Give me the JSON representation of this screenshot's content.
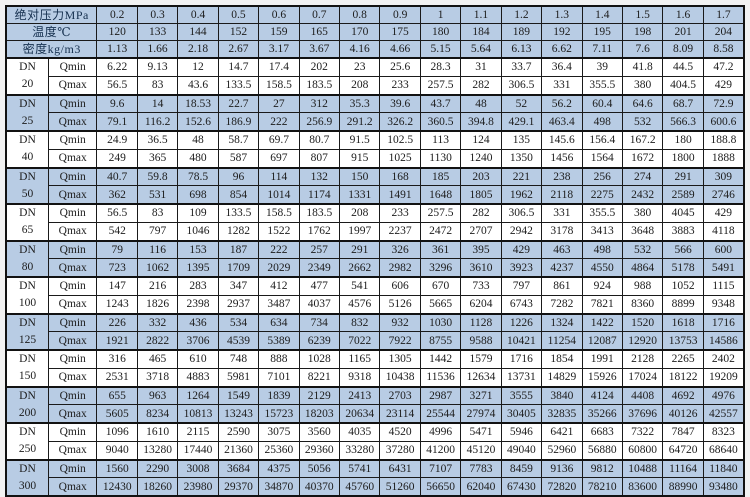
{
  "colors": {
    "shaded_row_bg": "#b8cce4",
    "plain_row_bg": "#ffffff",
    "border": "#121212",
    "text": "#1c1c1c",
    "cjk_text": "#152f4e"
  },
  "table": {
    "dn_prefix": "DN",
    "qmin_label": "Qmin",
    "qmax_label": "Qmax",
    "header_rows": [
      {
        "label": "绝对压力MPa",
        "values": [
          "0.2",
          "0.3",
          "0.4",
          "0.5",
          "0.6",
          "0.7",
          "0.8",
          "0.9",
          "1",
          "1.1",
          "1.2",
          "1.3",
          "1.4",
          "1.5",
          "1.6",
          "1.7"
        ]
      },
      {
        "label": "温度℃",
        "values": [
          "120",
          "133",
          "144",
          "152",
          "159",
          "165",
          "170",
          "175",
          "180",
          "184",
          "189",
          "192",
          "195",
          "198",
          "201",
          "204"
        ]
      },
      {
        "label": "密度kg/m3",
        "values": [
          "1.13",
          "1.66",
          "2.18",
          "2.67",
          "3.17",
          "3.67",
          "4.16",
          "4.66",
          "5.15",
          "5.64",
          "6.13",
          "6.62",
          "7.11",
          "7.6",
          "8.09",
          "8.58"
        ]
      }
    ],
    "groups": [
      {
        "dn": "20",
        "shaded": false,
        "qmin": [
          "6.22",
          "9.13",
          "12",
          "14.7",
          "17.4",
          "202",
          "23",
          "25.6",
          "28.3",
          "31",
          "33.7",
          "36.4",
          "39",
          "41.8",
          "44.5",
          "47.2"
        ],
        "qmax": [
          "56.5",
          "83",
          "43.6",
          "133.5",
          "158.5",
          "183.5",
          "208",
          "233",
          "257.5",
          "282",
          "306.5",
          "331",
          "355.5",
          "380",
          "404.5",
          "429"
        ]
      },
      {
        "dn": "25",
        "shaded": true,
        "qmin": [
          "9.6",
          "14",
          "18.53",
          "22.7",
          "27",
          "312",
          "35.3",
          "39.6",
          "43.7",
          "48",
          "52",
          "56.2",
          "60.4",
          "64.6",
          "68.7",
          "72.9"
        ],
        "qmax": [
          "79.1",
          "116.2",
          "152.6",
          "186.9",
          "222",
          "256.9",
          "291.2",
          "326.2",
          "360.5",
          "394.8",
          "429.1",
          "463.4",
          "498",
          "532",
          "566.3",
          "600.6"
        ]
      },
      {
        "dn": "40",
        "shaded": false,
        "qmin": [
          "24.9",
          "36.5",
          "48",
          "58.7",
          "69.7",
          "80.7",
          "91.5",
          "102.5",
          "113",
          "124",
          "135",
          "145.6",
          "156.4",
          "167.2",
          "180",
          "188.8"
        ],
        "qmax": [
          "249",
          "365",
          "480",
          "587",
          "697",
          "807",
          "915",
          "1025",
          "1130",
          "1240",
          "1350",
          "1456",
          "1564",
          "1672",
          "1800",
          "1888"
        ]
      },
      {
        "dn": "50",
        "shaded": true,
        "qmin": [
          "40.7",
          "59.8",
          "78.5",
          "96",
          "114",
          "132",
          "150",
          "168",
          "185",
          "203",
          "221",
          "238",
          "256",
          "274",
          "291",
          "309"
        ],
        "qmax": [
          "362",
          "531",
          "698",
          "854",
          "1014",
          "1174",
          "1331",
          "1491",
          "1648",
          "1805",
          "1962",
          "2118",
          "2275",
          "2432",
          "2589",
          "2746"
        ]
      },
      {
        "dn": "65",
        "shaded": false,
        "qmin": [
          "56.5",
          "83",
          "109",
          "133.5",
          "158.5",
          "183.5",
          "208",
          "233",
          "257.5",
          "282",
          "306.5",
          "331",
          "355.5",
          "380",
          "4045",
          "429"
        ],
        "qmax": [
          "542",
          "797",
          "1046",
          "1282",
          "1522",
          "1762",
          "1997",
          "2237",
          "2472",
          "2707",
          "2942",
          "3178",
          "3413",
          "3648",
          "3883",
          "4118"
        ]
      },
      {
        "dn": "80",
        "shaded": true,
        "qmin": [
          "79",
          "116",
          "153",
          "187",
          "222",
          "257",
          "291",
          "326",
          "361",
          "395",
          "429",
          "463",
          "498",
          "532",
          "566",
          "600"
        ],
        "qmax": [
          "723",
          "1062",
          "1395",
          "1709",
          "2029",
          "2349",
          "2662",
          "2982",
          "3296",
          "3610",
          "3923",
          "4237",
          "4550",
          "4864",
          "5178",
          "5491"
        ]
      },
      {
        "dn": "100",
        "shaded": false,
        "qmin": [
          "147",
          "216",
          "283",
          "347",
          "412",
          "477",
          "541",
          "606",
          "670",
          "733",
          "797",
          "861",
          "924",
          "988",
          "1052",
          "1115"
        ],
        "qmax": [
          "1243",
          "1826",
          "2398",
          "2937",
          "3487",
          "4037",
          "4576",
          "5126",
          "5665",
          "6204",
          "6743",
          "7282",
          "7821",
          "8360",
          "8899",
          "9348"
        ]
      },
      {
        "dn": "125",
        "shaded": true,
        "qmin": [
          "226",
          "332",
          "436",
          "534",
          "634",
          "734",
          "832",
          "932",
          "1030",
          "1128",
          "1226",
          "1324",
          "1422",
          "1520",
          "1618",
          "1716"
        ],
        "qmax": [
          "1921",
          "2822",
          "3706",
          "4539",
          "5389",
          "6239",
          "7022",
          "7922",
          "8755",
          "9588",
          "10421",
          "11254",
          "12087",
          "12920",
          "13753",
          "14586"
        ]
      },
      {
        "dn": "150",
        "shaded": false,
        "qmin": [
          "316",
          "465",
          "610",
          "748",
          "888",
          "1028",
          "1165",
          "1305",
          "1442",
          "1579",
          "1716",
          "1854",
          "1991",
          "2128",
          "2265",
          "2402"
        ],
        "qmax": [
          "2531",
          "3718",
          "4883",
          "5981",
          "7101",
          "8221",
          "9318",
          "10438",
          "11536",
          "12634",
          "13731",
          "14829",
          "15926",
          "17024",
          "18122",
          "19209"
        ]
      },
      {
        "dn": "200",
        "shaded": true,
        "qmin": [
          "655",
          "963",
          "1264",
          "1549",
          "1839",
          "2129",
          "2413",
          "2703",
          "2987",
          "3271",
          "3555",
          "3840",
          "4124",
          "4408",
          "4692",
          "4976"
        ],
        "qmax": [
          "5605",
          "8234",
          "10813",
          "13243",
          "15723",
          "18203",
          "20634",
          "23114",
          "25544",
          "27974",
          "30405",
          "32835",
          "35266",
          "37696",
          "40126",
          "42557"
        ]
      },
      {
        "dn": "250",
        "shaded": false,
        "qmin": [
          "1096",
          "1610",
          "2115",
          "2590",
          "3075",
          "3560",
          "4035",
          "4520",
          "4996",
          "5471",
          "5946",
          "6421",
          "6683",
          "7322",
          "7847",
          "8323"
        ],
        "qmax": [
          "9040",
          "13280",
          "17440",
          "21360",
          "25360",
          "29360",
          "33280",
          "37280",
          "41200",
          "45120",
          "49040",
          "52960",
          "56880",
          "60800",
          "64720",
          "68640"
        ]
      },
      {
        "dn": "300",
        "shaded": true,
        "qmin": [
          "1560",
          "2290",
          "3008",
          "3684",
          "4375",
          "5056",
          "5741",
          "6431",
          "7107",
          "7783",
          "8459",
          "9136",
          "9812",
          "10488",
          "11164",
          "11840"
        ],
        "qmax": [
          "12430",
          "18260",
          "23980",
          "29370",
          "34870",
          "40370",
          "45760",
          "51260",
          "56650",
          "62040",
          "67430",
          "72820",
          "78210",
          "83600",
          "88990",
          "93480"
        ]
      }
    ]
  }
}
